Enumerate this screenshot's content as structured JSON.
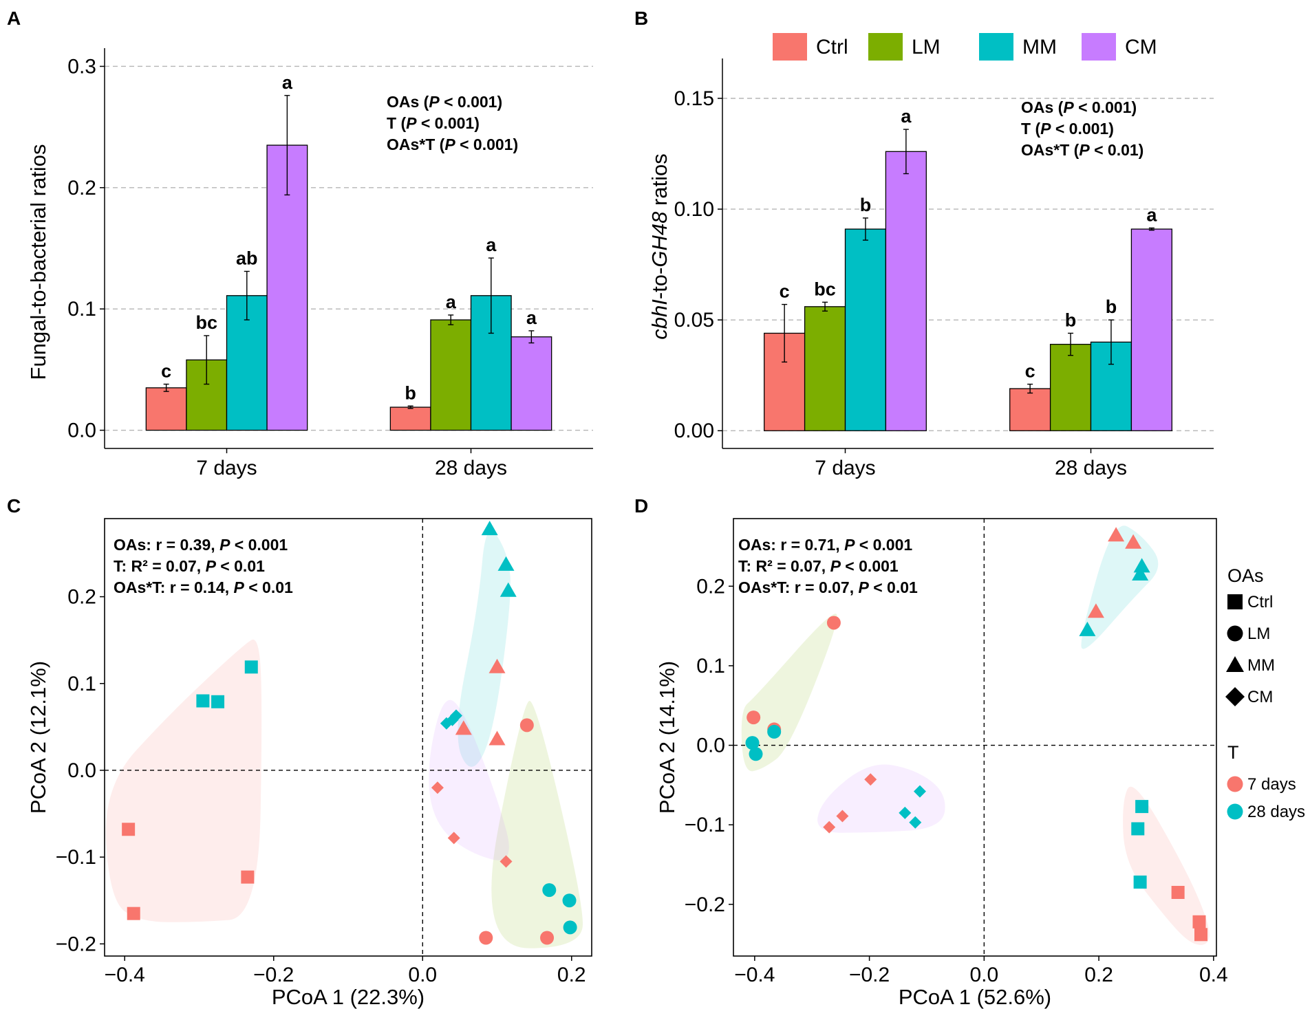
{
  "legend": {
    "treatments": [
      "Ctrl",
      "LM",
      "MM",
      "CM"
    ],
    "treatment_colors": [
      "#F8766D",
      "#7CAE00",
      "#00BFC4",
      "#C77CFF"
    ],
    "oas_title": "OAs",
    "time_title": "T",
    "times": [
      "7 days",
      "28 days"
    ],
    "time_colors": [
      "#F8766D",
      "#00BFC4"
    ],
    "shapes": [
      "square",
      "circle",
      "triangle",
      "diamond"
    ]
  },
  "chart_data": [
    {
      "panel": "A",
      "type": "bar",
      "title": "",
      "xlabel": "",
      "ylabel": "Fungal-to-bacterial ratios",
      "ylim": [
        -0.015,
        0.315
      ],
      "yticks": [
        0.0,
        0.1,
        0.2,
        0.3
      ],
      "ytick_labels": [
        "0.0",
        "0.1",
        "0.2",
        "0.3"
      ],
      "grid": true,
      "categories": [
        "7 days",
        "28 days"
      ],
      "series": [
        {
          "name": "Ctrl",
          "values": [
            0.035,
            0.019
          ],
          "errors": [
            0.003,
            0.001
          ],
          "letters": [
            "c",
            "b"
          ]
        },
        {
          "name": "LM",
          "values": [
            0.058,
            0.091
          ],
          "errors": [
            0.02,
            0.004
          ],
          "letters": [
            "bc",
            "a"
          ]
        },
        {
          "name": "MM",
          "values": [
            0.111,
            0.111
          ],
          "errors": [
            0.02,
            0.031
          ],
          "letters": [
            "ab",
            "a"
          ]
        },
        {
          "name": "CM",
          "values": [
            0.235,
            0.077
          ],
          "errors": [
            0.041,
            0.005
          ],
          "letters": [
            "a",
            "a"
          ]
        }
      ],
      "stats": {
        "line1_a": "OAs (",
        "line1_b": "P",
        "line1_c": " < 0.001)",
        "line2_a": "T (",
        "line2_b": "P",
        "line2_c": " < 0.001)",
        "line3_a": "OAs*T (",
        "line3_b": "P",
        "line3_c": " < 0.001)"
      }
    },
    {
      "panel": "B",
      "type": "bar",
      "title": "",
      "xlabel": "",
      "ylabel_parts": {
        "a": "cbhI",
        "b": "-to-",
        "c": "GH48",
        "d": " ratios"
      },
      "ylim": [
        -0.008,
        0.168
      ],
      "yticks": [
        0.0,
        0.05,
        0.1,
        0.15
      ],
      "ytick_labels": [
        "0.00",
        "0.05",
        "0.10",
        "0.15"
      ],
      "grid": true,
      "categories": [
        "7 days",
        "28 days"
      ],
      "series": [
        {
          "name": "Ctrl",
          "values": [
            0.044,
            0.019
          ],
          "errors": [
            0.013,
            0.002
          ],
          "letters": [
            "c",
            "c"
          ]
        },
        {
          "name": "LM",
          "values": [
            0.056,
            0.039
          ],
          "errors": [
            0.002,
            0.005
          ],
          "letters": [
            "bc",
            "b"
          ]
        },
        {
          "name": "MM",
          "values": [
            0.091,
            0.04
          ],
          "errors": [
            0.005,
            0.01
          ],
          "letters": [
            "b",
            "b"
          ]
        },
        {
          "name": "CM",
          "values": [
            0.126,
            0.091
          ],
          "errors": [
            0.01,
            0.0005
          ],
          "letters": [
            "a",
            "a"
          ]
        }
      ],
      "stats": {
        "line1_a": "OAs (",
        "line1_b": "P",
        "line1_c": " < 0.001)",
        "line2_a": "T (",
        "line2_b": "P",
        "line2_c": " < 0.001)",
        "line3_a": "OAs*T (",
        "line3_b": "P",
        "line3_c": " < 0.01)"
      }
    },
    {
      "panel": "C",
      "type": "scatter",
      "title": "",
      "xlabel": "PCoA 1 (22.3%)",
      "ylabel": "PCoA 2 (12.1%)",
      "xlim": [
        -0.427,
        0.227
      ],
      "ylim": [
        -0.214,
        0.29
      ],
      "xticks": [
        -0.4,
        -0.2,
        0.0,
        0.2
      ],
      "xtick_labels": [
        "−0.4",
        "−0.2",
        "0.0",
        "0.2"
      ],
      "yticks": [
        -0.2,
        -0.1,
        0.0,
        0.1,
        0.2
      ],
      "ytick_labels": [
        "−0.2",
        "−0.1",
        "0.0",
        "0.1",
        "0.2"
      ],
      "grid": false,
      "points": [
        {
          "x": -0.395,
          "y": -0.068,
          "shape": "square",
          "time": "7 days"
        },
        {
          "x": -0.388,
          "y": -0.165,
          "shape": "square",
          "time": "7 days"
        },
        {
          "x": -0.235,
          "y": -0.123,
          "shape": "square",
          "time": "7 days"
        },
        {
          "x": -0.295,
          "y": 0.08,
          "shape": "square",
          "time": "28 days"
        },
        {
          "x": -0.275,
          "y": 0.079,
          "shape": "square",
          "time": "28 days"
        },
        {
          "x": -0.23,
          "y": 0.119,
          "shape": "square",
          "time": "28 days"
        },
        {
          "x": 0.14,
          "y": 0.052,
          "shape": "circle",
          "time": "7 days"
        },
        {
          "x": 0.085,
          "y": -0.193,
          "shape": "circle",
          "time": "7 days"
        },
        {
          "x": 0.167,
          "y": -0.193,
          "shape": "circle",
          "time": "7 days"
        },
        {
          "x": 0.17,
          "y": -0.138,
          "shape": "circle",
          "time": "28 days"
        },
        {
          "x": 0.197,
          "y": -0.15,
          "shape": "circle",
          "time": "28 days"
        },
        {
          "x": 0.198,
          "y": -0.181,
          "shape": "circle",
          "time": "28 days"
        },
        {
          "x": 0.055,
          "y": 0.048,
          "shape": "triangle",
          "time": "7 days"
        },
        {
          "x": 0.1,
          "y": 0.119,
          "shape": "triangle",
          "time": "7 days"
        },
        {
          "x": 0.1,
          "y": 0.036,
          "shape": "triangle",
          "time": "7 days"
        },
        {
          "x": 0.09,
          "y": 0.278,
          "shape": "triangle",
          "time": "28 days"
        },
        {
          "x": 0.112,
          "y": 0.237,
          "shape": "triangle",
          "time": "28 days"
        },
        {
          "x": 0.115,
          "y": 0.207,
          "shape": "triangle",
          "time": "28 days"
        },
        {
          "x": 0.02,
          "y": -0.02,
          "shape": "diamond",
          "time": "7 days"
        },
        {
          "x": 0.042,
          "y": -0.078,
          "shape": "diamond",
          "time": "7 days"
        },
        {
          "x": 0.112,
          "y": -0.105,
          "shape": "diamond",
          "time": "7 days"
        },
        {
          "x": 0.032,
          "y": 0.054,
          "shape": "diamond",
          "time": "28 days"
        },
        {
          "x": 0.04,
          "y": 0.058,
          "shape": "diamond",
          "time": "28 days"
        },
        {
          "x": 0.045,
          "y": 0.063,
          "shape": "diamond",
          "time": "28 days"
        }
      ],
      "hulls": [
        {
          "group": "Ctrl",
          "color": "#F8766D",
          "points": [
            [
              -0.43,
              -0.02
            ],
            [
              -0.34,
              0.065
            ],
            [
              -0.24,
              0.145
            ],
            [
              -0.22,
              0.155
            ],
            [
              -0.215,
              0.08
            ],
            [
              -0.22,
              -0.17
            ],
            [
              -0.3,
              -0.175
            ],
            [
              -0.38,
              -0.175
            ],
            [
              -0.42,
              -0.15
            ]
          ]
        },
        {
          "group": "LM",
          "color": "#7CAE00",
          "points": [
            [
              0.07,
              -0.205
            ],
            [
              0.135,
              0.08
            ],
            [
              0.152,
              0.08
            ],
            [
              0.215,
              -0.15
            ],
            [
              0.215,
              -0.205
            ]
          ]
        },
        {
          "group": "MM",
          "color": "#00BFC4",
          "points": [
            [
              0.04,
              0.04
            ],
            [
              0.075,
              0.19
            ],
            [
              0.085,
              0.29
            ],
            [
              0.115,
              0.25
            ],
            [
              0.12,
              0.2
            ],
            [
              0.095,
              0.04
            ],
            [
              0.065,
              -0.008
            ]
          ]
        },
        {
          "group": "CM",
          "color": "#C77CFF",
          "points": [
            [
              0.005,
              0.0
            ],
            [
              0.025,
              0.082
            ],
            [
              0.05,
              0.08
            ],
            [
              0.1,
              -0.03
            ],
            [
              0.125,
              -0.11
            ],
            [
              0.06,
              -0.095
            ],
            [
              0.015,
              -0.06
            ]
          ]
        }
      ],
      "stats": {
        "line1_a": "OAs: r = 0.39, ",
        "line1_b": "P",
        "line1_c": " < 0.001",
        "line2_a": "T: R² = 0.07, ",
        "line2_b": "P",
        "line2_c": " < 0.01",
        "line3_a": "OAs*T: r = 0.14, ",
        "line3_b": "P",
        "line3_c": " < 0.01"
      }
    },
    {
      "panel": "D",
      "type": "scatter",
      "title": "",
      "xlabel": "PCoA 1 (52.6%)",
      "ylabel": "PCoA 2 (14.1%)",
      "xlim": [
        -0.437,
        0.405
      ],
      "ylim": [
        -0.265,
        0.285
      ],
      "xticks": [
        -0.4,
        -0.2,
        0.0,
        0.2,
        0.4
      ],
      "xtick_labels": [
        "−0.4",
        "−0.2",
        "0.0",
        "0.2",
        "0.4"
      ],
      "yticks": [
        -0.2,
        -0.1,
        0.0,
        0.1,
        0.2
      ],
      "ytick_labels": [
        "−0.2",
        "−0.1",
        "0.0",
        "0.1",
        "0.2"
      ],
      "grid": false,
      "points": [
        {
          "x": 0.338,
          "y": -0.185,
          "shape": "square",
          "time": "7 days"
        },
        {
          "x": 0.375,
          "y": -0.222,
          "shape": "square",
          "time": "7 days"
        },
        {
          "x": 0.378,
          "y": -0.238,
          "shape": "square",
          "time": "7 days"
        },
        {
          "x": 0.275,
          "y": -0.077,
          "shape": "square",
          "time": "28 days"
        },
        {
          "x": 0.268,
          "y": -0.105,
          "shape": "square",
          "time": "28 days"
        },
        {
          "x": 0.272,
          "y": -0.172,
          "shape": "square",
          "time": "28 days"
        },
        {
          "x": -0.262,
          "y": 0.154,
          "shape": "circle",
          "time": "7 days"
        },
        {
          "x": -0.402,
          "y": 0.035,
          "shape": "circle",
          "time": "7 days"
        },
        {
          "x": -0.366,
          "y": 0.02,
          "shape": "circle",
          "time": "7 days"
        },
        {
          "x": -0.404,
          "y": 0.003,
          "shape": "circle",
          "time": "28 days"
        },
        {
          "x": -0.398,
          "y": -0.011,
          "shape": "circle",
          "time": "28 days"
        },
        {
          "x": -0.366,
          "y": 0.017,
          "shape": "circle",
          "time": "28 days"
        },
        {
          "x": 0.23,
          "y": 0.264,
          "shape": "triangle",
          "time": "7 days"
        },
        {
          "x": 0.26,
          "y": 0.255,
          "shape": "triangle",
          "time": "7 days"
        },
        {
          "x": 0.195,
          "y": 0.168,
          "shape": "triangle",
          "time": "7 days"
        },
        {
          "x": 0.275,
          "y": 0.225,
          "shape": "triangle",
          "time": "28 days"
        },
        {
          "x": 0.272,
          "y": 0.215,
          "shape": "triangle",
          "time": "28 days"
        },
        {
          "x": 0.18,
          "y": 0.145,
          "shape": "triangle",
          "time": "28 days"
        },
        {
          "x": -0.198,
          "y": -0.043,
          "shape": "diamond",
          "time": "7 days"
        },
        {
          "x": -0.247,
          "y": -0.089,
          "shape": "diamond",
          "time": "7 days"
        },
        {
          "x": -0.27,
          "y": -0.103,
          "shape": "diamond",
          "time": "7 days"
        },
        {
          "x": -0.112,
          "y": -0.058,
          "shape": "diamond",
          "time": "28 days"
        },
        {
          "x": -0.138,
          "y": -0.085,
          "shape": "diamond",
          "time": "28 days"
        },
        {
          "x": -0.12,
          "y": -0.097,
          "shape": "diamond",
          "time": "28 days"
        }
      ],
      "hulls": [
        {
          "group": "Ctrl",
          "color": "#F8766D",
          "points": [
            [
              0.26,
              -0.04
            ],
            [
              0.355,
              -0.16
            ],
            [
              0.395,
              -0.23
            ],
            [
              0.39,
              -0.252
            ],
            [
              0.36,
              -0.25
            ],
            [
              0.32,
              -0.22
            ],
            [
              0.245,
              -0.15
            ],
            [
              0.24,
              -0.07
            ]
          ]
        },
        {
          "group": "LM",
          "color": "#7CAE00",
          "points": [
            [
              -0.425,
              0.045
            ],
            [
              -0.4,
              0.06
            ],
            [
              -0.265,
              0.17
            ],
            [
              -0.25,
              0.16
            ],
            [
              -0.34,
              -0.005
            ],
            [
              -0.385,
              -0.03
            ],
            [
              -0.42,
              -0.035
            ]
          ]
        },
        {
          "group": "MM",
          "color": "#00BFC4",
          "points": [
            [
              0.165,
              0.13
            ],
            [
              0.225,
              0.285
            ],
            [
              0.275,
              0.265
            ],
            [
              0.315,
              0.225
            ],
            [
              0.26,
              0.185
            ],
            [
              0.175,
              0.115
            ]
          ]
        },
        {
          "group": "CM",
          "color": "#C77CFF",
          "points": [
            [
              -0.295,
              -0.11
            ],
            [
              -0.285,
              -0.07
            ],
            [
              -0.2,
              -0.02
            ],
            [
              -0.12,
              -0.03
            ],
            [
              -0.065,
              -0.06
            ],
            [
              -0.072,
              -0.105
            ],
            [
              -0.2,
              -0.11
            ]
          ]
        }
      ],
      "stats": {
        "line1_a": "OAs: r = 0.71, ",
        "line1_b": "P",
        "line1_c": " < 0.001",
        "line2_a": "T: R² = 0.07, ",
        "line2_b": "P",
        "line2_c": " < 0.001",
        "line3_a": "OAs*T: r = 0.07, ",
        "line3_b": "P",
        "line3_c": " < 0.01"
      }
    }
  ]
}
